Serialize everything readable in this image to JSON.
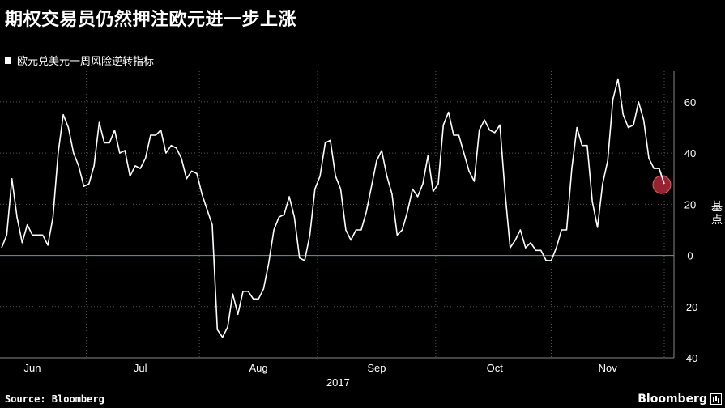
{
  "title": "期权交易员仍然押注欧元进一步上涨",
  "legend_label": "欧元兑美元一周风险逆转指标",
  "source": "Source: Bloomberg",
  "brand": "Bloomberg",
  "colors": {
    "background": "#000000",
    "line": "#ffffff",
    "zero_line": "#4a8a9a",
    "marker": "#b0283a",
    "grid": "#555555"
  },
  "chart_data": {
    "type": "line",
    "title": "期权交易员仍然押注欧元进一步上涨",
    "ylabel": "基点",
    "xlabel": "2017",
    "ylim": [
      -40,
      72
    ],
    "yticks": [
      60,
      40,
      20,
      0,
      -20,
      -40
    ],
    "x_ticks": [
      {
        "label": "Jun",
        "index": 6
      },
      {
        "label": "Jul",
        "index": 27
      },
      {
        "label": "Aug",
        "index": 50
      },
      {
        "label": "Sep",
        "index": 73
      },
      {
        "label": "Oct",
        "index": 96
      },
      {
        "label": "Nov",
        "index": 118
      }
    ],
    "year_label": "2017",
    "series": [
      {
        "name": "欧元兑美元一周风险逆转指标",
        "values": [
          3,
          8,
          30,
          15,
          5,
          12,
          8,
          8,
          8,
          4,
          15,
          40,
          55,
          50,
          40,
          35,
          27,
          28,
          35,
          52,
          44,
          44,
          49,
          40,
          41,
          31,
          35,
          34,
          38,
          47,
          47,
          49,
          40,
          43,
          42,
          38,
          30,
          33,
          32,
          24,
          18,
          12,
          -29,
          -32,
          -28,
          -15,
          -23,
          -14,
          -14,
          -17,
          -17,
          -13,
          -3,
          10,
          15,
          16,
          23,
          15,
          -1,
          -2,
          8,
          26,
          31,
          44,
          45,
          31,
          26,
          10,
          6,
          10,
          10,
          17,
          27,
          37,
          41,
          31,
          24,
          8,
          10,
          17,
          26,
          23,
          28,
          39,
          25,
          28,
          51,
          56,
          47,
          47,
          40,
          33,
          29,
          49,
          53,
          49,
          48,
          51,
          25,
          3,
          6,
          10,
          3,
          5,
          2,
          2,
          -2,
          -2,
          3,
          10,
          10,
          34,
          50,
          43,
          43,
          21,
          11,
          28,
          37,
          61,
          69,
          55,
          50,
          51,
          60,
          53,
          38,
          34,
          34,
          28
        ]
      }
    ],
    "highlight_last": true
  }
}
